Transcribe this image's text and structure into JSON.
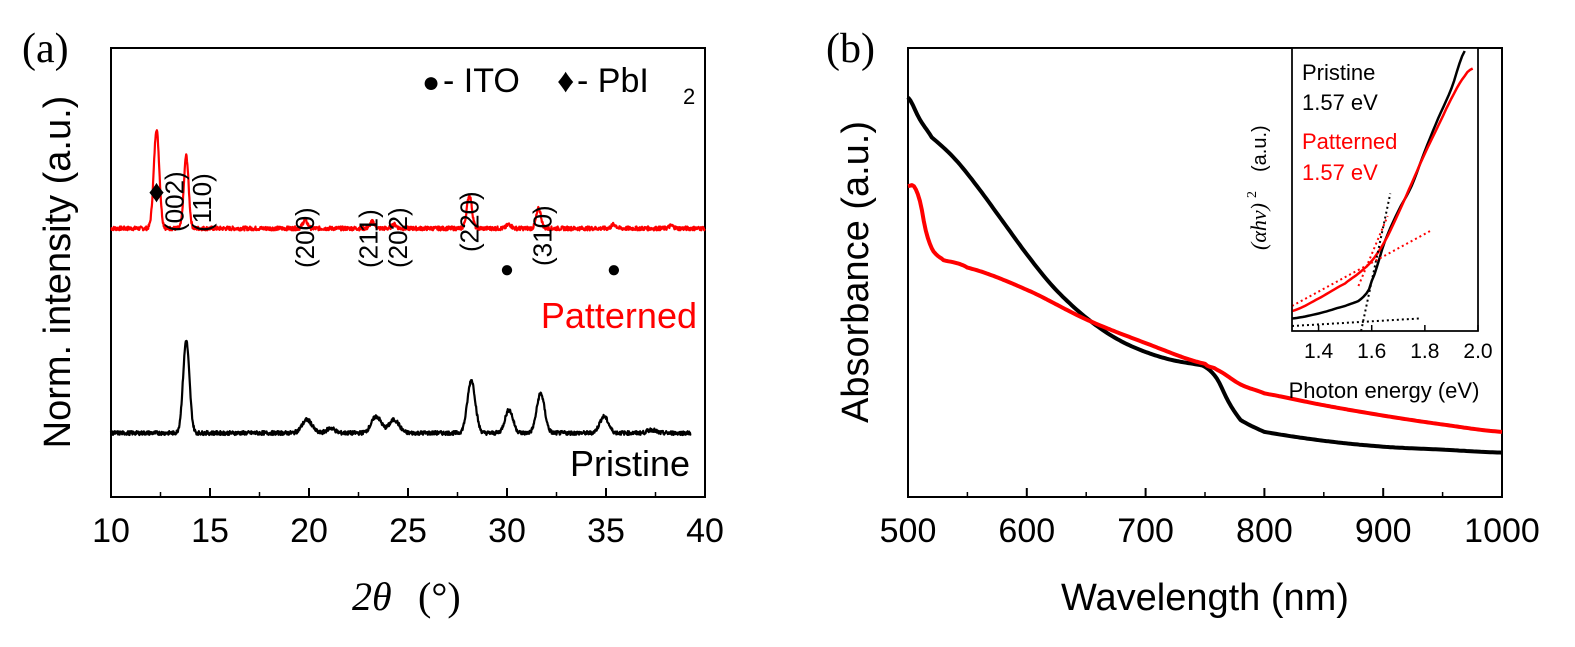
{
  "chart_data": [
    {
      "panel": "(a)",
      "type": "line",
      "title": "",
      "xlabel_symbol": "2θ",
      "xlabel_unit": "(°)",
      "ylabel": "Norm. intensity (a.u.)",
      "xlim": [
        10,
        40
      ],
      "xticks": [
        "10",
        "15",
        "20",
        "25",
        "30",
        "35",
        "40"
      ],
      "legend": {
        "ito_marker": "●",
        "ito_label": " - ITO",
        "pbi2_marker": "♦",
        "pbi2_label": " - PbI",
        "pbi2_sub": "2"
      },
      "series": [
        {
          "name": "Patterned",
          "color": "#ff0000",
          "x_range": [
            10,
            40
          ],
          "baseline": 0.62,
          "peaks": [
            {
              "x": 12.3,
              "height": 0.3,
              "width": 0.14
            },
            {
              "x": 13.8,
              "height": 0.22,
              "width": 0.12
            },
            {
              "x": 19.8,
              "height": 0.025,
              "width": 0.12
            },
            {
              "x": 23.2,
              "height": 0.02,
              "width": 0.12
            },
            {
              "x": 24.3,
              "height": 0.012,
              "width": 0.12
            },
            {
              "x": 28.1,
              "height": 0.1,
              "width": 0.13
            },
            {
              "x": 30.1,
              "height": 0.012,
              "width": 0.12
            },
            {
              "x": 31.6,
              "height": 0.06,
              "width": 0.12
            },
            {
              "x": 35.4,
              "height": 0.012,
              "width": 0.12
            },
            {
              "x": 38.3,
              "height": 0.008,
              "width": 0.12
            }
          ]
        },
        {
          "name": "Pristine",
          "color": "#000000",
          "x_range": [
            10,
            39.3
          ],
          "baseline": 0.0,
          "peaks": [
            {
              "x": 13.8,
              "height": 0.28,
              "width": 0.16
            },
            {
              "x": 19.9,
              "height": 0.04,
              "width": 0.25
            },
            {
              "x": 21.1,
              "height": 0.015,
              "width": 0.2
            },
            {
              "x": 23.4,
              "height": 0.05,
              "width": 0.25
            },
            {
              "x": 24.3,
              "height": 0.04,
              "width": 0.25
            },
            {
              "x": 28.2,
              "height": 0.16,
              "width": 0.2
            },
            {
              "x": 30.1,
              "height": 0.07,
              "width": 0.2
            },
            {
              "x": 31.7,
              "height": 0.12,
              "width": 0.2
            },
            {
              "x": 34.9,
              "height": 0.05,
              "width": 0.22
            },
            {
              "x": 37.3,
              "height": 0.01,
              "width": 0.2
            }
          ]
        }
      ],
      "annotations": [
        {
          "text": "(002)",
          "x": 13.2,
          "kind": "label"
        },
        {
          "text": "(110)",
          "x": 14.6,
          "kind": "label"
        },
        {
          "text": "(200)",
          "x": 19.8,
          "kind": "label"
        },
        {
          "text": "(211)",
          "x": 23.0,
          "kind": "label"
        },
        {
          "text": "(202)",
          "x": 24.5,
          "kind": "label"
        },
        {
          "text": "(220)",
          "x": 28.1,
          "kind": "label"
        },
        {
          "text": "(310)",
          "x": 31.8,
          "kind": "label"
        },
        {
          "text": "♦",
          "x": 12.3,
          "kind": "pbi2"
        },
        {
          "text": "●",
          "x": 30.0,
          "kind": "ito"
        },
        {
          "text": "●",
          "x": 35.4,
          "kind": "ito"
        }
      ]
    },
    {
      "panel": "(b)",
      "type": "line",
      "title": "",
      "xlabel": "Wavelength (nm)",
      "ylabel": "Absorbance (a.u.)",
      "xlim": [
        500,
        1000
      ],
      "xticks": [
        "500",
        "600",
        "700",
        "800",
        "900",
        "1000"
      ],
      "series": [
        {
          "name": "Pristine",
          "color": "#000000",
          "x": [
            500,
            510,
            520,
            540,
            560,
            580,
            600,
            620,
            640,
            660,
            680,
            700,
            720,
            740,
            750,
            760,
            770,
            780,
            800,
            850,
            900,
            950,
            1000
          ],
          "y": [
            2.7,
            2.55,
            2.43,
            2.28,
            2.08,
            1.86,
            1.64,
            1.44,
            1.28,
            1.15,
            1.05,
            0.98,
            0.93,
            0.9,
            0.88,
            0.8,
            0.64,
            0.52,
            0.44,
            0.38,
            0.34,
            0.32,
            0.3
          ]
        },
        {
          "name": "Patterned",
          "color": "#ff0000",
          "x": [
            500,
            505,
            510,
            515,
            520,
            525,
            530,
            550,
            600,
            650,
            700,
            750,
            760,
            780,
            800,
            850,
            900,
            950,
            1000
          ],
          "y": [
            2.1,
            2.1,
            2.0,
            1.8,
            1.68,
            1.63,
            1.6,
            1.55,
            1.4,
            1.2,
            1.04,
            0.9,
            0.86,
            0.76,
            0.7,
            0.62,
            0.55,
            0.49,
            0.44
          ]
        }
      ],
      "inset": {
        "xlabel": "Photon energy (eV)",
        "ylabel_symbol": "(αhν)",
        "ylabel_sup": "2",
        "ylabel_unit": "(a.u.)",
        "xlim": [
          1.3,
          2.0
        ],
        "xticks": [
          "1.4",
          "1.6",
          "1.8",
          "2.0"
        ],
        "legend": [
          {
            "name": "Pristine",
            "bandgap": "1.57 eV",
            "color": "#000000"
          },
          {
            "name": "Patterned",
            "bandgap": "1.57 eV",
            "color": "#ff0000"
          }
        ],
        "series": [
          {
            "name": "Pristine",
            "color": "#000000",
            "x": [
              1.3,
              1.4,
              1.5,
              1.55,
              1.58,
              1.6,
              1.65,
              1.7,
              1.75,
              1.8,
              1.85,
              1.9,
              1.95
            ],
            "y": [
              0.05,
              0.07,
              0.1,
              0.12,
              0.15,
              0.2,
              0.36,
              0.48,
              0.58,
              0.72,
              0.85,
              0.97,
              1.12
            ]
          },
          {
            "name": "Patterned",
            "color": "#ff0000",
            "x": [
              1.3,
              1.4,
              1.5,
              1.55,
              1.6,
              1.65,
              1.7,
              1.75,
              1.8,
              1.85,
              1.9,
              1.95,
              1.98
            ],
            "y": [
              0.08,
              0.13,
              0.19,
              0.23,
              0.28,
              0.36,
              0.47,
              0.59,
              0.71,
              0.82,
              0.93,
              1.02,
              1.05
            ]
          }
        ],
        "fits": [
          {
            "name": "Pristine tangent",
            "color": "#000000",
            "x": [
              1.56,
              1.67
            ],
            "y": [
              0.0,
              0.55
            ]
          },
          {
            "name": "Pristine baseline",
            "color": "#000000",
            "x": [
              1.3,
              1.78
            ],
            "y": [
              0.02,
              0.05
            ]
          },
          {
            "name": "Patterned tangent",
            "color": "#ff0000",
            "x": [
              1.55,
              1.66
            ],
            "y": [
              0.18,
              0.46
            ]
          },
          {
            "name": "Patterned baseline",
            "color": "#ff0000",
            "x": [
              1.3,
              1.82
            ],
            "y": [
              0.1,
              0.4
            ]
          }
        ]
      }
    }
  ],
  "labels": {
    "patterned": "Patterned",
    "pristine": "Pristine"
  },
  "colors": {
    "patterned": "#ff0000",
    "pristine": "#000000"
  }
}
